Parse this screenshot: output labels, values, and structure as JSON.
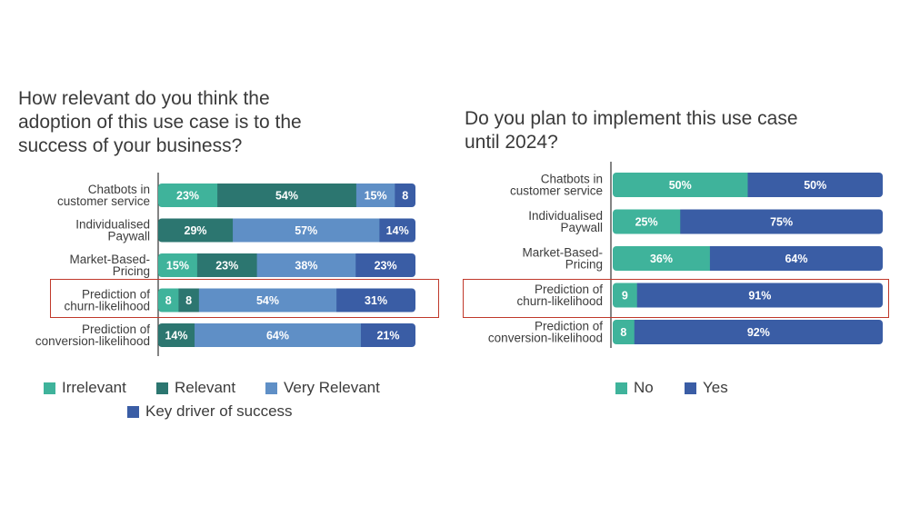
{
  "left": {
    "title": "How relevant do you think the\nadoption of this use case is to the\nsuccess of your business?",
    "legend": [
      {
        "label": "Irrelevant",
        "color": "#3fb39b"
      },
      {
        "label": "Relevant",
        "color": "#2c7670"
      },
      {
        "label": "Very Relevant",
        "color": "#5f8fc6"
      },
      {
        "label": "Key driver of success",
        "color": "#3a5da5"
      }
    ]
  },
  "right": {
    "title": "Do you plan to implement this use case\nuntil 2024?",
    "legend": [
      {
        "label": "No",
        "color": "#3fb39b"
      },
      {
        "label": "Yes",
        "color": "#3a5da5"
      }
    ]
  },
  "chart_data": [
    {
      "type": "bar",
      "orientation": "horizontal",
      "stacked": true,
      "title": "How relevant do you think the adoption of this use case is to the success of your business?",
      "categories": [
        [
          "Chatbots in",
          "customer service"
        ],
        [
          "Individualised",
          "Paywall"
        ],
        [
          "Market-Based-",
          "Pricing"
        ],
        [
          "Prediction of",
          "churn-likelihood"
        ],
        [
          "Prediction of",
          "conversion-likelihood"
        ]
      ],
      "series": [
        {
          "name": "Irrelevant",
          "values": [
            23,
            0,
            15,
            8,
            0
          ],
          "labels": [
            "23%",
            "",
            "15%",
            "8",
            ""
          ]
        },
        {
          "name": "Relevant",
          "values": [
            54,
            29,
            23,
            8,
            14
          ],
          "labels": [
            "54%",
            "29%",
            "23%",
            "8",
            "14%"
          ]
        },
        {
          "name": "Very Relevant",
          "values": [
            15,
            57,
            38,
            54,
            64
          ],
          "labels": [
            "15%",
            "57%",
            "38%",
            "54%",
            "64%"
          ]
        },
        {
          "name": "Key driver of success",
          "values": [
            8,
            14,
            23,
            31,
            21
          ],
          "labels": [
            "8",
            "14%",
            "23%",
            "31%",
            "21%"
          ]
        }
      ],
      "xlim": [
        0,
        100
      ],
      "highlighted_category": 3,
      "legend_position": "bottom"
    },
    {
      "type": "bar",
      "orientation": "horizontal",
      "stacked": true,
      "title": "Do you plan to implement this use case until 2024?",
      "categories": [
        [
          "Chatbots in",
          "customer service"
        ],
        [
          "Individualised",
          "Paywall"
        ],
        [
          "Market-Based-",
          "Pricing"
        ],
        [
          "Prediction of",
          "churn-likelihood"
        ],
        [
          "Prediction of",
          "conversion-likelihood"
        ]
      ],
      "series": [
        {
          "name": "No",
          "values": [
            50,
            25,
            36,
            9,
            8
          ],
          "labels": [
            "50%",
            "25%",
            "36%",
            "9",
            "8"
          ]
        },
        {
          "name": "Yes",
          "values": [
            50,
            75,
            64,
            91,
            92
          ],
          "labels": [
            "50%",
            "75%",
            "64%",
            "91%",
            "92%"
          ]
        }
      ],
      "xlim": [
        0,
        100
      ],
      "highlighted_category": 3,
      "legend_position": "bottom"
    }
  ]
}
